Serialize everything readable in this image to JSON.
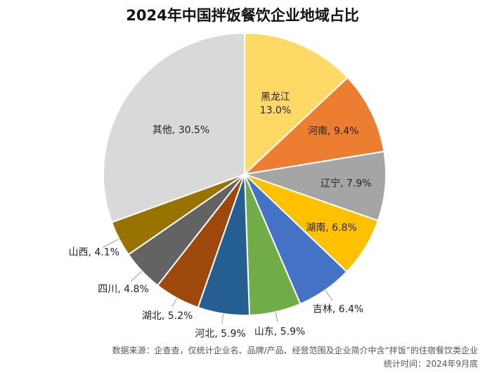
{
  "chart_data": {
    "type": "pie",
    "title": "2024年中国拌饭餐饮企业地域占比",
    "slices": [
      {
        "name": "黑龙江",
        "value": 13.0,
        "label": "13.0%",
        "color": "#FFD966"
      },
      {
        "name": "河南",
        "value": 9.4,
        "label": "9.4%",
        "color": "#ED7D31"
      },
      {
        "name": "辽宁",
        "value": 7.9,
        "label": "7.9%",
        "color": "#A5A5A5"
      },
      {
        "name": "湖南",
        "value": 6.8,
        "label": "6.8%",
        "color": "#FFC000"
      },
      {
        "name": "吉林",
        "value": 6.4,
        "label": "6.4%",
        "color": "#4472C4"
      },
      {
        "name": "山东",
        "value": 5.9,
        "label": "5.9%",
        "color": "#70AD47"
      },
      {
        "name": "河北",
        "value": 5.9,
        "label": "5.9%",
        "color": "#255E91"
      },
      {
        "name": "湖北",
        "value": 5.2,
        "label": "5.2%",
        "color": "#9E480E"
      },
      {
        "name": "四川",
        "value": 4.8,
        "label": "4.8%",
        "color": "#636363"
      },
      {
        "name": "山西",
        "value": 4.1,
        "label": "4.1%",
        "color": "#997300"
      },
      {
        "name": "其他",
        "value": 30.5,
        "label": "30.5%",
        "color": "#D9D9D9"
      }
    ]
  },
  "footer": {
    "source": "数据来源：企查查，仅统计企业名、品牌/产品、经营范围及企业简介中含“拌饭”的住宿餐饮类企业",
    "stat_time": "统计时间：2024年9月底"
  }
}
